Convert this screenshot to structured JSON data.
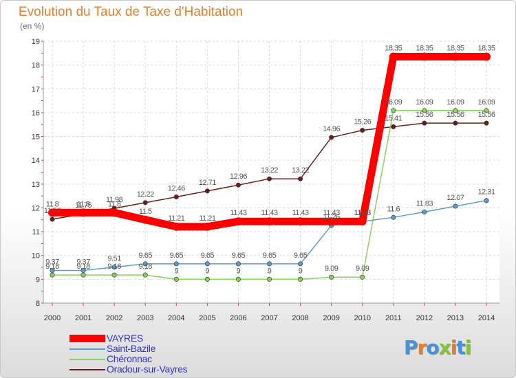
{
  "chart_data": {
    "type": "line",
    "title": "Evolution du Taux de Taxe d'Habitation",
    "ylabel": "(en %)",
    "xlabel": "",
    "x": [
      "2000",
      "2001",
      "2002",
      "2003",
      "2004",
      "2005",
      "2006",
      "2007",
      "2008",
      "2009",
      "2010",
      "2011",
      "2012",
      "2013",
      "2014"
    ],
    "ylim": [
      8,
      19
    ],
    "yticks": [
      "8",
      "9",
      "10",
      "11",
      "12",
      "13",
      "14",
      "15",
      "16",
      "17",
      "18",
      "19"
    ],
    "grid": true,
    "legend_position": "bottom-left",
    "series": [
      {
        "name": "Oradour-sur-Vayres",
        "color": "#6b1c1c",
        "values": [
          11.52,
          11.75,
          11.98,
          12.22,
          12.46,
          12.71,
          12.96,
          13.22,
          13.22,
          14.96,
          15.26,
          15.41,
          15.56,
          15.56,
          15.56
        ],
        "labels": [
          "11.52",
          "11.75",
          "11.98",
          "12.22",
          "12.46",
          "12.71",
          "12.96",
          "13.22",
          "13.22",
          "14.96",
          "15.26",
          "15.41",
          "15.56",
          "15.56",
          "15.56"
        ]
      },
      {
        "name": "Chéronnac",
        "color": "#88d15c",
        "values": [
          9.18,
          9.18,
          9.18,
          9.18,
          9.0,
          9.0,
          9.0,
          9.0,
          9.0,
          9.09,
          9.09,
          16.09,
          16.09,
          16.09,
          16.09
        ],
        "labels": [
          "9.18",
          "9.18",
          "9.18",
          "9.18",
          "9",
          "9",
          "9",
          "9",
          "9",
          "9.09",
          "9.09",
          "16.09",
          "16.09",
          "16.09",
          "16.09"
        ]
      },
      {
        "name": "Saint-Bazile",
        "color": "#5b9bd0",
        "values": [
          9.37,
          9.37,
          9.51,
          9.65,
          9.65,
          9.65,
          9.65,
          9.65,
          9.65,
          11.26,
          11.43,
          11.6,
          11.83,
          12.07,
          12.31
        ],
        "labels": [
          "9.37",
          "9.37",
          "9.51",
          "9.65",
          "9.65",
          "9.65",
          "9.65",
          "9.65",
          "9.65",
          "11.26",
          "11.43",
          "11.6",
          "11.83",
          "12.07",
          "12.31"
        ]
      },
      {
        "name": "VAYRES",
        "color": "#ff0000",
        "values": [
          11.8,
          11.8,
          11.8,
          11.5,
          11.21,
          11.21,
          11.43,
          11.43,
          11.43,
          11.43,
          11.43,
          18.35,
          18.35,
          18.35,
          18.35
        ],
        "labels": [
          "11.8",
          "11.8",
          "11.8",
          "11.5",
          "11.21",
          "11.21",
          "11.43",
          "11.43",
          "11.43",
          "11.43",
          "11.43",
          "18.35",
          "18.35",
          "18.35",
          "18.35"
        ]
      }
    ]
  },
  "legend": {
    "items": [
      {
        "name": "VAYRES",
        "color": "#ff0000"
      },
      {
        "name": "Saint-Bazile",
        "color": "#5b9bd0"
      },
      {
        "name": "Chéronnac",
        "color": "#88d15c"
      },
      {
        "name": "Oradour-sur-Vayres",
        "color": "#6b1c1c"
      }
    ]
  },
  "logo": {
    "text": "Proxiti",
    "colors": [
      "#4a90d9",
      "#e87f24",
      "#4a90d9",
      "#88c23a",
      "#e87f24",
      "#4a90d9",
      "#88c23a"
    ]
  }
}
